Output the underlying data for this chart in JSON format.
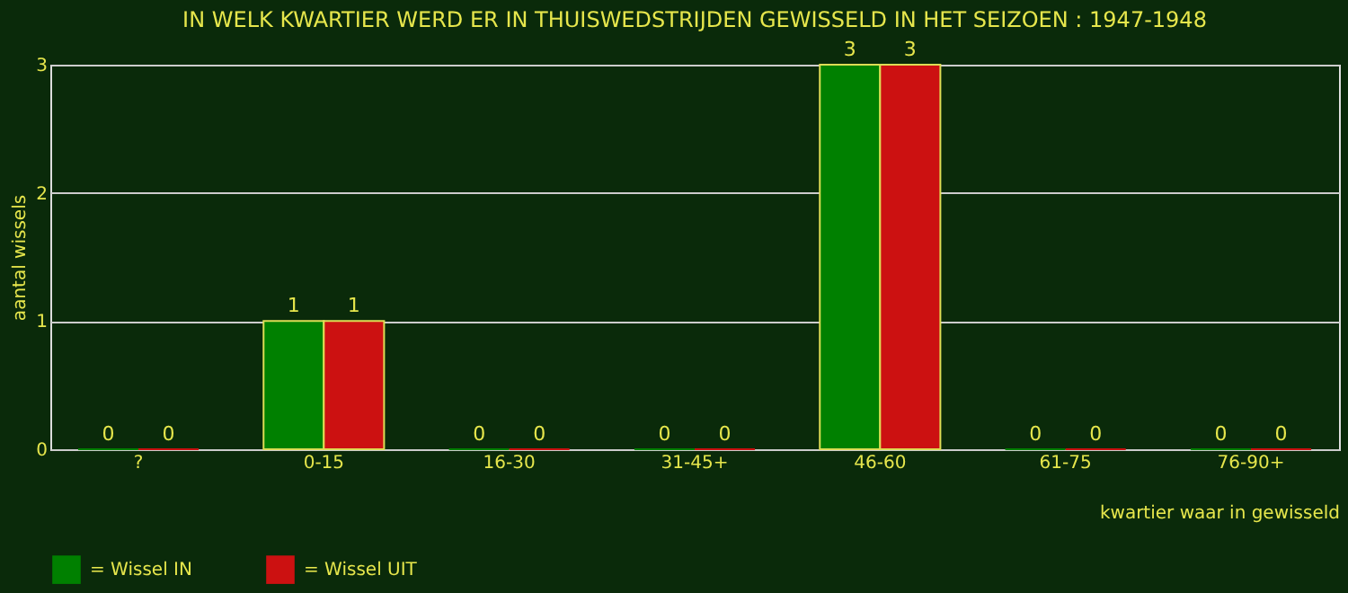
{
  "chart_data": {
    "type": "bar",
    "title": "IN WELK KWARTIER WERD ER IN THUISWEDSTRIJDEN GEWISSELD IN HET SEIZOEN : 1947-1948",
    "xlabel": "kwartier waar in gewisseld",
    "ylabel": "aantal wissels",
    "categories": [
      "?",
      "0-15",
      "16-30",
      "31-45+",
      "46-60",
      "61-75",
      "76-90+"
    ],
    "series": [
      {
        "name": "= Wissel IN",
        "color": "#008000",
        "values": [
          0,
          1,
          0,
          0,
          3,
          0,
          0
        ]
      },
      {
        "name": "= Wissel UIT",
        "color": "#cc1111",
        "values": [
          0,
          1,
          0,
          0,
          3,
          0,
          0
        ]
      }
    ],
    "ylim": [
      0,
      3
    ],
    "yticks": [
      0,
      1,
      2,
      3
    ],
    "grid": "y",
    "legend": "bottom",
    "data_labels": true
  }
}
